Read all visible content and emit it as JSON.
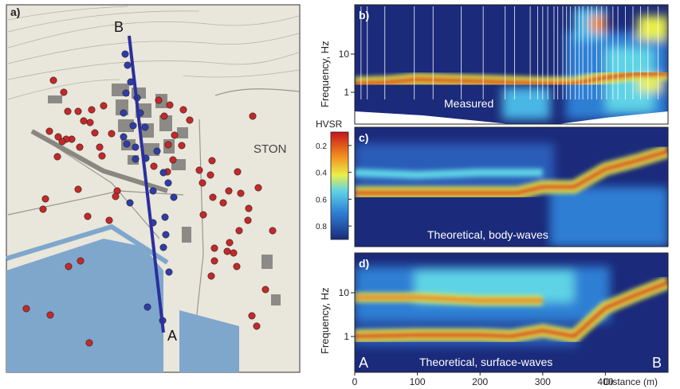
{
  "map": {
    "panel_label": "a)",
    "point_b_label": "B",
    "point_a_label": "A",
    "town_label": "STON",
    "colors": {
      "sea": "#7fa7cc",
      "land": "#e9e6dc",
      "profile_line": "#2b2f9c",
      "red_marker": "#c62828",
      "blue_marker": "#2f3da8"
    }
  },
  "panels": {
    "b": {
      "label": "b)",
      "caption": "Measured",
      "ylabel": "Frequency, Hz",
      "yticks": [
        "10",
        "1"
      ]
    },
    "c": {
      "label": "c)",
      "caption": "Theoretical, body-waves",
      "colorbar_title": "HVSR",
      "colorbar_ticks": [
        "0.8",
        "0.6",
        "0.4",
        "0.2"
      ]
    },
    "d": {
      "label": "d)",
      "caption": "Theoretical, surface-waves",
      "ylabel": "Frequency, Hz",
      "yticks": [
        "10",
        "1"
      ],
      "end_left": "A",
      "end_right": "B"
    }
  },
  "xaxis": {
    "ticks": [
      "0",
      "100",
      "200",
      "300",
      "400"
    ],
    "label": "Distance (m)"
  },
  "chart_data": [
    {
      "type": "heatmap",
      "panel": "b",
      "caption": "Measured",
      "ylabel": "Frequency, Hz",
      "yscale": "log",
      "xlim": [
        0,
        500
      ],
      "ylim": [
        0.5,
        50
      ],
      "peak_ridge": {
        "x": [
          0,
          50,
          100,
          150,
          200,
          250,
          300,
          350,
          400,
          450,
          500
        ],
        "y": [
          2.4,
          2.5,
          2.8,
          2.7,
          2.6,
          2.5,
          2.4,
          2.4,
          3.0,
          3.5,
          3.5
        ]
      }
    },
    {
      "type": "heatmap",
      "panel": "c",
      "caption": "Theoretical, body-waves",
      "colorbar": {
        "title": "HVSR",
        "range": [
          0.1,
          0.9
        ],
        "ticks": [
          0.2,
          0.4,
          0.6,
          0.8
        ]
      },
      "xlim": [
        0,
        500
      ],
      "ridges": [
        {
          "x": [
            0,
            100,
            200,
            260,
            300,
            350,
            400,
            450,
            500
          ],
          "y": [
            0.45,
            0.45,
            0.45,
            0.45,
            0.5,
            0.5,
            0.65,
            0.72,
            0.8
          ]
        },
        {
          "x": [
            0,
            100,
            200,
            300
          ],
          "y": [
            0.62,
            0.6,
            0.62,
            0.62
          ]
        }
      ]
    },
    {
      "type": "heatmap",
      "panel": "d",
      "caption": "Theoretical, surface-waves",
      "ylabel": "Frequency, Hz",
      "yscale": "log",
      "xlim": [
        0,
        500
      ],
      "ylim": [
        0.5,
        50
      ],
      "ridges": [
        {
          "x": [
            0,
            100,
            200,
            250,
            300,
            350,
            400,
            450,
            500
          ],
          "y": [
            2.0,
            2.1,
            2.1,
            2.0,
            2.5,
            2.0,
            6,
            10,
            16
          ]
        },
        {
          "x": [
            0,
            100,
            200,
            300
          ],
          "y": [
            9,
            9,
            8,
            8
          ]
        }
      ]
    }
  ]
}
